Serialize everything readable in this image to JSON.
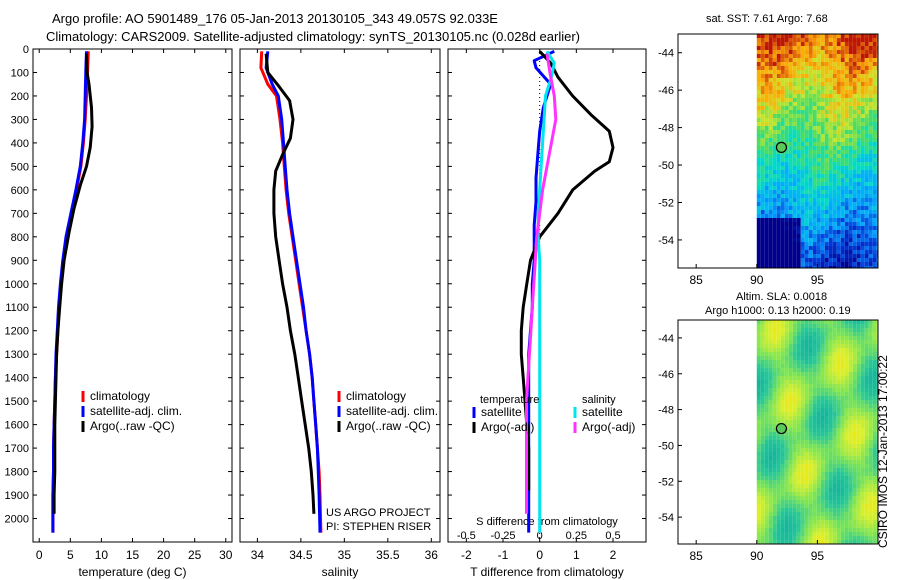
{
  "header": {
    "title_line1": "Argo profile: AO 5901489_176 05-Jan-2013 20130105_343 49.057S 92.033E",
    "title_line2": "Climatology: CARS2009. Satellite-adjusted climatology: synTS_20130105.nc (0.028d earlier)"
  },
  "colors": {
    "climatology": "#ff0000",
    "satellite": "#0000ff",
    "argo": "#000000",
    "salinity_satellite": "#00e5ee",
    "salinity_argo": "#ff33ff"
  },
  "chart_data": [
    {
      "type": "line",
      "id": "temperature",
      "xlabel": "temperature (deg C)",
      "xlim": [
        -1,
        31
      ],
      "xticks": [
        0,
        5,
        10,
        15,
        20,
        25,
        30
      ],
      "ylim": [
        2100,
        0
      ],
      "yticks": [
        0,
        100,
        200,
        300,
        400,
        500,
        600,
        700,
        800,
        900,
        1000,
        1100,
        1200,
        1300,
        1400,
        1500,
        1600,
        1700,
        1800,
        1900,
        2000
      ],
      "legend": [
        "climatology",
        "satellite-adj. clim.",
        "Argo(..raw -QC)"
      ],
      "series": [
        {
          "name": "climatology",
          "color_key": "climatology",
          "points": [
            [
              7.9,
              10
            ],
            [
              7.8,
              80
            ],
            [
              7.6,
              200
            ],
            [
              7.4,
              300
            ],
            [
              7.1,
              400
            ],
            [
              6.7,
              500
            ],
            [
              6.0,
              600
            ],
            [
              5.2,
              700
            ],
            [
              4.4,
              800
            ],
            [
              3.9,
              900
            ],
            [
              3.5,
              1000
            ],
            [
              3.2,
              1100
            ],
            [
              3.0,
              1200
            ],
            [
              2.8,
              1300
            ],
            [
              2.6,
              1400
            ],
            [
              2.5,
              1500
            ],
            [
              2.4,
              1600
            ],
            [
              2.3,
              1700
            ],
            [
              2.3,
              1800
            ],
            [
              2.2,
              1900
            ],
            [
              2.2,
              2060
            ]
          ]
        },
        {
          "name": "satellite-adj. clim.",
          "color_key": "satellite",
          "points": [
            [
              7.6,
              10
            ],
            [
              7.5,
              80
            ],
            [
              7.4,
              200
            ],
            [
              7.3,
              300
            ],
            [
              7.0,
              400
            ],
            [
              6.6,
              500
            ],
            [
              5.9,
              600
            ],
            [
              5.1,
              700
            ],
            [
              4.3,
              800
            ],
            [
              3.8,
              900
            ],
            [
              3.4,
              1000
            ],
            [
              3.1,
              1100
            ],
            [
              2.9,
              1200
            ],
            [
              2.7,
              1300
            ],
            [
              2.6,
              1400
            ],
            [
              2.5,
              1500
            ],
            [
              2.4,
              1600
            ],
            [
              2.3,
              1700
            ],
            [
              2.3,
              1800
            ],
            [
              2.2,
              1900
            ],
            [
              2.2,
              2060
            ]
          ]
        },
        {
          "name": "Argo(..raw -QC)",
          "color_key": "argo",
          "points": [
            [
              7.6,
              20
            ],
            [
              7.7,
              100
            ],
            [
              8.0,
              150
            ],
            [
              8.4,
              250
            ],
            [
              8.5,
              330
            ],
            [
              8.2,
              420
            ],
            [
              7.6,
              500
            ],
            [
              6.6,
              580
            ],
            [
              5.6,
              680
            ],
            [
              4.8,
              780
            ],
            [
              4.0,
              900
            ],
            [
              3.6,
              1000
            ],
            [
              3.3,
              1100
            ],
            [
              3.0,
              1200
            ],
            [
              2.8,
              1300
            ],
            [
              2.7,
              1400
            ],
            [
              2.6,
              1500
            ],
            [
              2.5,
              1600
            ],
            [
              2.5,
              1700
            ],
            [
              2.5,
              1800
            ],
            [
              2.4,
              1900
            ],
            [
              2.4,
              1980
            ]
          ]
        }
      ]
    },
    {
      "type": "line",
      "id": "salinity",
      "xlabel": "salinity",
      "xlim": [
        33.8,
        36.1
      ],
      "xticks": [
        34,
        34.5,
        35,
        35.5,
        36
      ],
      "xticklabels": [
        "34",
        "34.5",
        "35",
        "35.5",
        "36"
      ],
      "ylim": [
        2100,
        0
      ],
      "legend": [
        "climatology",
        "satellite-adj. clim.",
        "Argo(..raw -QC)"
      ],
      "annotations": [
        "US ARGO PROJECT",
        "PI: STEPHEN RISER"
      ],
      "series": [
        {
          "name": "climatology",
          "color_key": "climatology",
          "points": [
            [
              34.05,
              10
            ],
            [
              34.04,
              80
            ],
            [
              34.12,
              150
            ],
            [
              34.22,
              200
            ],
            [
              34.26,
              300
            ],
            [
              34.29,
              400
            ],
            [
              34.31,
              500
            ],
            [
              34.33,
              600
            ],
            [
              34.36,
              700
            ],
            [
              34.4,
              800
            ],
            [
              34.44,
              900
            ],
            [
              34.48,
              1000
            ],
            [
              34.52,
              1100
            ],
            [
              34.56,
              1200
            ],
            [
              34.6,
              1300
            ],
            [
              34.63,
              1400
            ],
            [
              34.65,
              1500
            ],
            [
              34.67,
              1600
            ],
            [
              34.69,
              1700
            ],
            [
              34.71,
              1800
            ],
            [
              34.72,
              1900
            ],
            [
              34.73,
              2060
            ]
          ]
        },
        {
          "name": "satellite-adj. clim.",
          "color_key": "satellite",
          "points": [
            [
              34.12,
              10
            ],
            [
              34.1,
              80
            ],
            [
              34.17,
              150
            ],
            [
              34.24,
              200
            ],
            [
              34.28,
              300
            ],
            [
              34.3,
              400
            ],
            [
              34.32,
              500
            ],
            [
              34.34,
              600
            ],
            [
              34.37,
              700
            ],
            [
              34.41,
              800
            ],
            [
              34.45,
              900
            ],
            [
              34.49,
              1000
            ],
            [
              34.53,
              1100
            ],
            [
              34.56,
              1200
            ],
            [
              34.6,
              1300
            ],
            [
              34.63,
              1400
            ],
            [
              34.65,
              1500
            ],
            [
              34.67,
              1600
            ],
            [
              34.69,
              1700
            ],
            [
              34.7,
              1800
            ],
            [
              34.71,
              1900
            ],
            [
              34.72,
              2060
            ]
          ]
        },
        {
          "name": "Argo(..raw -QC)",
          "color_key": "argo",
          "points": [
            [
              34.1,
              20
            ],
            [
              34.12,
              100
            ],
            [
              34.25,
              160
            ],
            [
              34.37,
              220
            ],
            [
              34.41,
              300
            ],
            [
              34.38,
              380
            ],
            [
              34.29,
              450
            ],
            [
              34.21,
              520
            ],
            [
              34.19,
              600
            ],
            [
              34.19,
              700
            ],
            [
              34.21,
              800
            ],
            [
              34.25,
              900
            ],
            [
              34.29,
              1000
            ],
            [
              34.34,
              1100
            ],
            [
              34.38,
              1200
            ],
            [
              34.43,
              1300
            ],
            [
              34.47,
              1400
            ],
            [
              34.51,
              1500
            ],
            [
              34.55,
              1600
            ],
            [
              34.59,
              1700
            ],
            [
              34.62,
              1800
            ],
            [
              34.64,
              1900
            ],
            [
              34.65,
              1980
            ]
          ]
        }
      ]
    },
    {
      "type": "line",
      "id": "difference",
      "xlabel": "T difference from climatology",
      "top_label": "S difference from climatology",
      "xlim": [
        -2.5,
        2.9
      ],
      "xticks": [
        -2,
        -1,
        0,
        1,
        2
      ],
      "top_xticks": [
        -0.5,
        -0.25,
        0,
        0.25,
        0.5
      ],
      "top_xticklabels": [
        "-0.5",
        "-0.25",
        "0",
        "0.25",
        "0.5"
      ],
      "ylim": [
        2100,
        0
      ],
      "legend_headers": [
        "temperature",
        "salinity"
      ],
      "legend": [
        "satellite",
        "Argo(-adj)",
        "satellite",
        "Argo(-adj)"
      ],
      "series": [
        {
          "name": "T satellite",
          "color_key": "satellite",
          "points": [
            [
              0.4,
              10
            ],
            [
              -0.15,
              50
            ],
            [
              -0.1,
              80
            ],
            [
              0.3,
              150
            ],
            [
              0.1,
              250
            ],
            [
              0.0,
              350
            ],
            [
              -0.05,
              450
            ],
            [
              -0.1,
              550
            ],
            [
              -0.1,
              650
            ],
            [
              -0.15,
              750
            ],
            [
              -0.15,
              900
            ],
            [
              -0.2,
              1000
            ],
            [
              -0.2,
              1100
            ],
            [
              -0.25,
              1200
            ],
            [
              -0.3,
              1300
            ],
            [
              -0.3,
              1400
            ],
            [
              -0.3,
              1500
            ],
            [
              -0.3,
              1600
            ],
            [
              -0.3,
              1700
            ],
            [
              -0.3,
              1800
            ],
            [
              -0.3,
              1900
            ],
            [
              -0.3,
              2060
            ]
          ]
        },
        {
          "name": "T Argo(-adj)",
          "color_key": "argo",
          "points": [
            [
              0.0,
              10
            ],
            [
              0.3,
              60
            ],
            [
              0.5,
              120
            ],
            [
              0.9,
              200
            ],
            [
              1.4,
              280
            ],
            [
              1.9,
              350
            ],
            [
              2.0,
              420
            ],
            [
              1.9,
              480
            ],
            [
              1.5,
              520
            ],
            [
              0.9,
              600
            ],
            [
              0.5,
              700
            ],
            [
              0.0,
              800
            ],
            [
              -0.25,
              900
            ],
            [
              -0.35,
              1000
            ],
            [
              -0.45,
              1100
            ],
            [
              -0.5,
              1200
            ],
            [
              -0.5,
              1300
            ],
            [
              -0.45,
              1400
            ],
            [
              -0.4,
              1500
            ],
            [
              -0.35,
              1600
            ],
            [
              -0.3,
              1700
            ],
            [
              -0.3,
              1800
            ],
            [
              -0.3,
              1880
            ]
          ]
        },
        {
          "name": "S satellite",
          "color_key": "salinity_satellite",
          "points": [
            [
              0.05,
              10
            ],
            [
              0.1,
              60
            ],
            [
              0.08,
              120
            ],
            [
              0.04,
              200
            ],
            [
              0.03,
              300
            ],
            [
              0.02,
              400
            ],
            [
              0.01,
              500
            ],
            [
              0.0,
              600
            ],
            [
              -0.01,
              700
            ],
            [
              -0.01,
              800
            ],
            [
              0.0,
              900
            ],
            [
              0.0,
              1000
            ],
            [
              0.0,
              1100
            ],
            [
              0.0,
              1200
            ],
            [
              0.0,
              1300
            ],
            [
              0.0,
              1400
            ],
            [
              0.0,
              1500
            ],
            [
              0.0,
              1600
            ],
            [
              0.0,
              1700
            ],
            [
              0.0,
              1800
            ],
            [
              0.0,
              1900
            ],
            [
              0.0,
              2060
            ]
          ]
        },
        {
          "name": "S Argo(-adj)",
          "color_key": "salinity_argo",
          "points": [
            [
              0.05,
              20
            ],
            [
              0.07,
              100
            ],
            [
              0.1,
              200
            ],
            [
              0.11,
              300
            ],
            [
              0.08,
              400
            ],
            [
              0.05,
              500
            ],
            [
              0.02,
              600
            ],
            [
              0.0,
              700
            ],
            [
              -0.02,
              800
            ],
            [
              -0.03,
              900
            ],
            [
              -0.04,
              1000
            ],
            [
              -0.05,
              1100
            ],
            [
              -0.06,
              1200
            ],
            [
              -0.07,
              1300
            ],
            [
              -0.08,
              1400
            ],
            [
              -0.09,
              1500
            ],
            [
              -0.09,
              1600
            ],
            [
              -0.09,
              1700
            ],
            [
              -0.09,
              1800
            ],
            [
              -0.09,
              1900
            ],
            [
              -0.09,
              1980
            ]
          ]
        }
      ]
    },
    {
      "type": "heatmap",
      "id": "sst_map",
      "title": "sat. SST: 7.61  Argo: 7.68",
      "xlim": [
        83.5,
        100
      ],
      "xticks": [
        85,
        90,
        95
      ],
      "ylim": [
        -55.5,
        -43
      ],
      "yticks": [
        -44,
        -46,
        -48,
        -50,
        -52,
        -54
      ],
      "float_position": [
        92.033,
        -49.057
      ]
    },
    {
      "type": "heatmap",
      "id": "sla_map",
      "title_line1": "Altim. SLA: 0.0018",
      "title_line2": "Argo h1000: 0.13 h2000: 0.19",
      "xlim": [
        83.5,
        100
      ],
      "xticks": [
        85,
        90,
        95
      ],
      "ylim": [
        -55.5,
        -43
      ],
      "yticks": [
        -44,
        -46,
        -48,
        -50,
        -52,
        -54
      ],
      "float_position": [
        92.033,
        -49.057
      ]
    }
  ],
  "stamp": "CSIRO IMOS 12-Jan-2013 17:00:22"
}
